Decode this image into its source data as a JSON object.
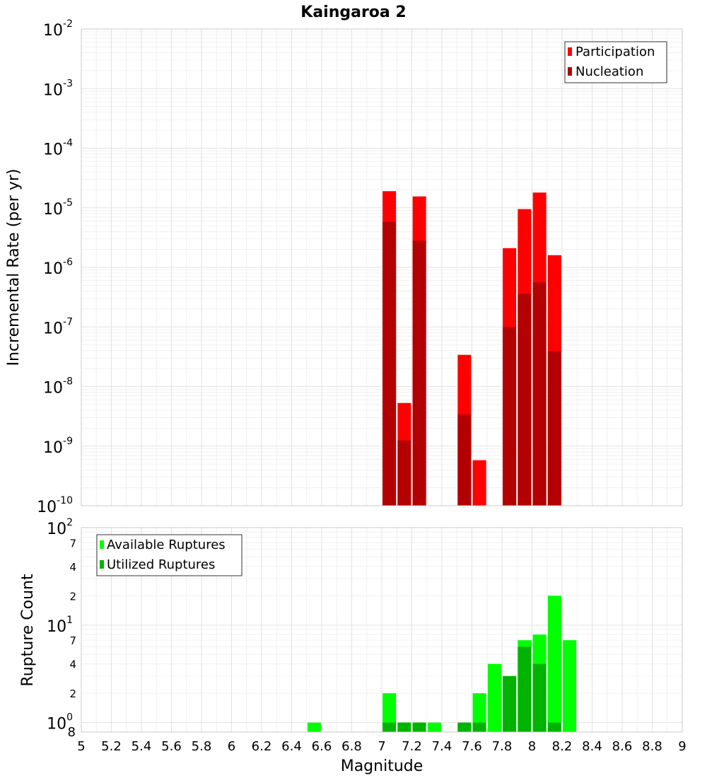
{
  "chart_data": [
    {
      "type": "bar",
      "title": "Kaingaroa 2",
      "xlabel": "",
      "ylabel": "Incremental Rate (per yr)",
      "yscale": "log",
      "ylim": [
        1e-10,
        0.01
      ],
      "xlim": [
        5,
        9
      ],
      "legend_position": "top-right",
      "grid": true,
      "colors": {
        "participation": "#ff0000",
        "nucleation": "#b30000"
      },
      "x": [
        7.05,
        7.15,
        7.25,
        7.55,
        7.65,
        7.85,
        7.95,
        8.05,
        8.15
      ],
      "series": [
        {
          "name": "Participation",
          "values": [
            1.9e-05,
            5.3e-09,
            1.55e-05,
            3.4e-08,
            5.8e-10,
            2.1e-06,
            9.5e-06,
            1.8e-05,
            1.6e-06
          ]
        },
        {
          "name": "Nucleation",
          "values": [
            5.8e-06,
            1.25e-09,
            2.8e-06,
            3.4e-09,
            null,
            1e-07,
            3.6e-07,
            5.6e-07,
            3.9e-08
          ]
        }
      ],
      "y_ticks": [
        "10",
        "10",
        "10",
        "10",
        "10",
        "10",
        "10",
        "10",
        "10"
      ],
      "y_tick_exponents": [
        "-10",
        "-9",
        "-8",
        "-7",
        "-6",
        "-5",
        "-4",
        "-3",
        "-2"
      ]
    },
    {
      "type": "bar",
      "title": "",
      "xlabel": "Magnitude",
      "ylabel": "Rupture Count",
      "yscale": "log",
      "ylim": [
        0.8,
        100
      ],
      "xlim": [
        5,
        9
      ],
      "legend_position": "top-left",
      "grid": true,
      "colors": {
        "available": "#00ff00",
        "utilized": "#00b300"
      },
      "x": [
        6.55,
        7.05,
        7.15,
        7.25,
        7.35,
        7.55,
        7.65,
        7.75,
        7.85,
        7.95,
        8.05,
        8.15,
        8.25
      ],
      "series": [
        {
          "name": "Available Ruptures",
          "values": [
            1,
            2,
            1,
            1,
            1,
            1,
            2,
            4,
            3,
            7,
            8,
            20,
            7
          ]
        },
        {
          "name": "Utilized Ruptures",
          "values": [
            null,
            1,
            1,
            1,
            null,
            1,
            1,
            null,
            3,
            6,
            4,
            1,
            null
          ]
        }
      ],
      "y_major_ticks": [
        "10",
        "10",
        "10"
      ],
      "y_major_exponents": [
        "0",
        "1",
        "2"
      ],
      "y_minor_ticks": [
        "8",
        "2",
        "4",
        "7",
        "2",
        "4",
        "7"
      ],
      "x_tick_labels": [
        "5",
        "5.2",
        "5.4",
        "5.6",
        "5.8",
        "6",
        "6.2",
        "6.4",
        "6.6",
        "6.8",
        "7",
        "7.2",
        "7.4",
        "7.6",
        "7.8",
        "8",
        "8.2",
        "8.4",
        "8.6",
        "8.8",
        "9"
      ]
    }
  ]
}
